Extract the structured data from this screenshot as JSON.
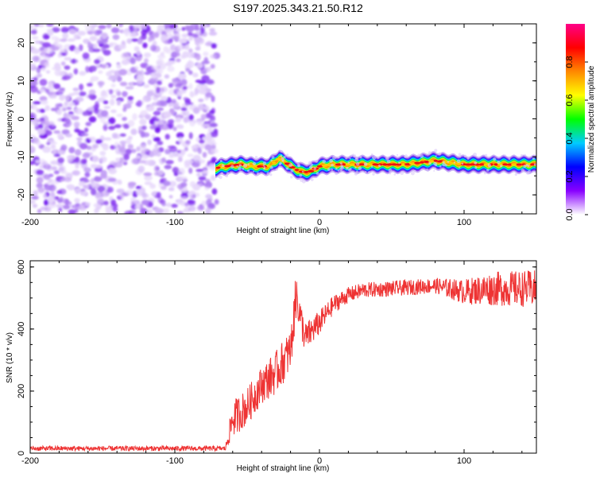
{
  "title": "S197.2025.343.21.50.R12",
  "colors": {
    "snr_line": "#ee3333",
    "axis": "#000000",
    "spectrum_low": "#9a5cf0"
  },
  "chart_data": [
    {
      "type": "heatmap",
      "title": "S197.2025.343.21.50.R12",
      "xlabel": "Height of straight line (km)",
      "ylabel": "Frequency (Hz)",
      "xlim": [
        -200,
        150
      ],
      "ylim": [
        -25,
        25
      ],
      "xticks": [
        -200,
        -100,
        0,
        100
      ],
      "xtick_labels": [
        "-200",
        "-100",
        "0",
        "100"
      ],
      "yticks": [
        -20,
        -10,
        0,
        10,
        20
      ],
      "ytick_labels": [
        "-20",
        "-10",
        "0",
        "10",
        "20"
      ],
      "noise_region_x": [
        -200,
        -71
      ],
      "ridge": {
        "x": [
          -72,
          -65,
          -55,
          -45,
          -35,
          -28,
          -23,
          -18,
          -12,
          -7,
          0,
          10,
          30,
          60,
          80,
          100,
          120,
          150
        ],
        "frequency_hz": [
          -13,
          -12.5,
          -12,
          -12.5,
          -12.5,
          -10.5,
          -11.5,
          -13,
          -14,
          -14,
          -12.5,
          -12,
          -12,
          -12,
          -11,
          -12,
          -12,
          -12
        ]
      },
      "colorbar": {
        "label": "Normalized spectral amplitude",
        "range": [
          0,
          1
        ],
        "ticks": [
          0.0,
          0.2,
          0.4,
          0.6,
          0.8
        ],
        "tick_labels": [
          "0.0",
          "0.2",
          "0.4",
          "0.6",
          "0.8"
        ],
        "colors": [
          "#ffffff",
          "#8800ff",
          "#0000ff",
          "#00ccff",
          "#00ff00",
          "#ffff00",
          "#ff8800",
          "#ff0000",
          "#ff0088"
        ]
      }
    },
    {
      "type": "line",
      "title": "",
      "xlabel": "Height of straight line (km)",
      "ylabel": "SNR (10 * v/v)",
      "xlim": [
        -200,
        150
      ],
      "ylim": [
        0,
        620
      ],
      "xticks": [
        -200,
        -100,
        0,
        100
      ],
      "xtick_labels": [
        "-200",
        "-100",
        "0",
        "100"
      ],
      "yticks": [
        0,
        200,
        400,
        600
      ],
      "ytick_labels": [
        "0",
        "200",
        "400",
        "600"
      ],
      "series": [
        {
          "name": "SNR",
          "x": [
            -200,
            -65,
            -60,
            -50,
            -40,
            -30,
            -20,
            -16,
            -10,
            0,
            10,
            20,
            30,
            50,
            80,
            100,
            120,
            150
          ],
          "values": [
            15,
            15,
            110,
            150,
            220,
            260,
            330,
            500,
            370,
            420,
            480,
            510,
            525,
            530,
            540,
            520,
            530,
            530
          ],
          "noise_amplitude": [
            8,
            8,
            60,
            60,
            60,
            70,
            70,
            60,
            50,
            40,
            30,
            25,
            25,
            25,
            25,
            40,
            55,
            60
          ]
        }
      ]
    }
  ]
}
